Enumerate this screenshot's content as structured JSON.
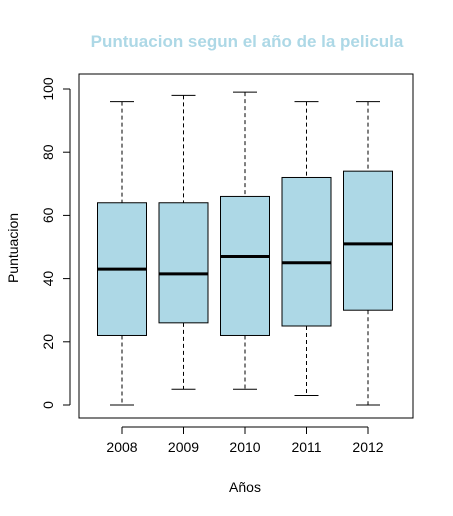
{
  "chart_data": {
    "type": "boxplot",
    "title": "Puntuacion segun el año de la pelicula",
    "xlabel": "Años",
    "ylabel": "Puntuacion",
    "ylim": [
      0,
      100
    ],
    "yticks": [
      "0",
      "20",
      "40",
      "60",
      "80",
      "100"
    ],
    "grid": false,
    "categories": [
      "2008",
      "2009",
      "2010",
      "2011",
      "2012"
    ],
    "boxes": [
      {
        "category": "2008",
        "min": 0,
        "q1": 22,
        "median": 43,
        "q3": 64,
        "max": 96
      },
      {
        "category": "2009",
        "min": 5,
        "q1": 26,
        "median": 41.5,
        "q3": 64,
        "max": 98
      },
      {
        "category": "2010",
        "min": 5,
        "q1": 22,
        "median": 47,
        "q3": 66,
        "max": 99
      },
      {
        "category": "2011",
        "min": 3,
        "q1": 25,
        "median": 45,
        "q3": 72,
        "max": 96
      },
      {
        "category": "2012",
        "min": 0,
        "q1": 30,
        "median": 51,
        "q3": 74,
        "max": 96
      }
    ],
    "colors": {
      "box_fill": "#add8e6",
      "title": "#add8e6",
      "median": "#000000"
    }
  }
}
